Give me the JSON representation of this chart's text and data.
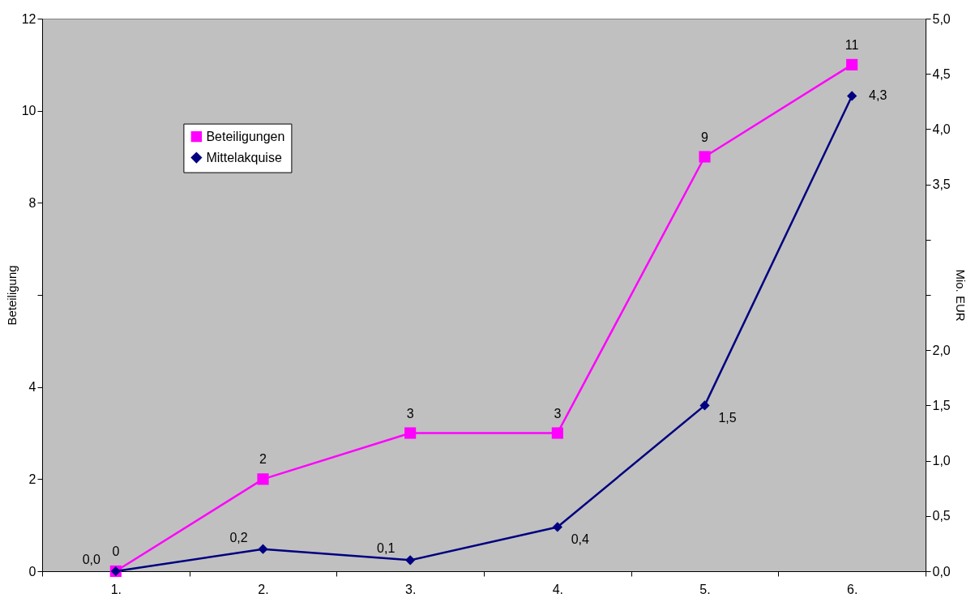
{
  "chart_data": {
    "type": "line",
    "categories": [
      "1.",
      "2.",
      "3.",
      "4.",
      "5.",
      "6."
    ],
    "ylabel": "Beteiligung",
    "y2label": "Mio. EUR",
    "ylim": [
      0,
      12
    ],
    "yticks": [
      0,
      2,
      4,
      {
        "value": 6,
        "label": null
      },
      8,
      10,
      12
    ],
    "y2lim": [
      0,
      5
    ],
    "y2ticks": [
      {
        "value": 0,
        "label": "0,0"
      },
      {
        "value": 0.5,
        "label": "0,5"
      },
      {
        "value": 1,
        "label": "1,0"
      },
      {
        "value": 1.5,
        "label": "1,5"
      },
      {
        "value": 2,
        "label": "2,0"
      },
      {
        "value": 2.5,
        "label": null
      },
      {
        "value": 3,
        "label": null
      },
      {
        "value": 3.5,
        "label": "3,5"
      },
      {
        "value": 4,
        "label": "4,0"
      },
      {
        "value": 4.5,
        "label": "4,5"
      },
      {
        "value": 5,
        "label": "5,0"
      }
    ],
    "legend": "top left",
    "grid": false,
    "series": [
      {
        "name": "Beteiligungen",
        "color": "#ff00ff",
        "marker": "square",
        "values": [
          0,
          2,
          3,
          3,
          9,
          11
        ],
        "value_labels": [
          "0",
          "2",
          "3",
          "3",
          "9",
          "11"
        ]
      },
      {
        "name": "Mittelakquise",
        "color": "#000080",
        "marker": "diamond",
        "axis": "y2",
        "values": [
          0,
          0.2,
          0.1,
          0.4,
          1.5,
          4.3
        ],
        "value_labels": [
          "0,0",
          "0,2",
          "0,1",
          "0,4",
          "1,5",
          "4,3"
        ]
      }
    ]
  }
}
